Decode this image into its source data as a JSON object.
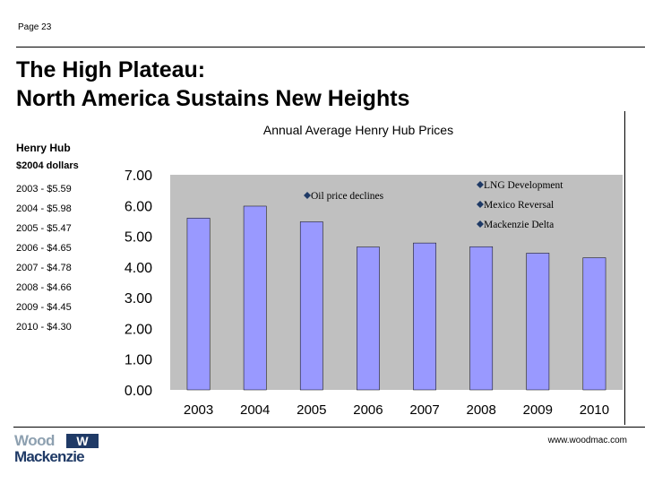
{
  "page": {
    "number_label": "Page 23",
    "website": "www.woodmac.com"
  },
  "title": {
    "line1": "The High Plateau:",
    "line2": "North America Sustains New Heights"
  },
  "sidebar": {
    "heading": "Henry Hub",
    "unit": "$2004 dollars",
    "items": [
      "2003 - $5.59",
      "2004 - $5.98",
      "2005 - $5.47",
      "2006 - $4.65",
      "2007 - $4.78",
      "2008 - $4.66",
      "2009 - $4.45",
      "2010 - $4.30"
    ]
  },
  "logo": {
    "line1": "Wood",
    "line2": "Mackenzie",
    "mark": "W"
  },
  "chart_data": {
    "type": "bar",
    "title": "Annual Average Henry Hub Prices",
    "categories": [
      "2003",
      "2004",
      "2005",
      "2006",
      "2007",
      "2008",
      "2009",
      "2010"
    ],
    "values": [
      5.59,
      5.98,
      5.47,
      4.65,
      4.78,
      4.66,
      4.45,
      4.3
    ],
    "ylim": [
      0,
      7
    ],
    "yticks": [
      "0.00",
      "1.00",
      "2.00",
      "3.00",
      "4.00",
      "5.00",
      "6.00",
      "7.00"
    ],
    "grid": false,
    "bar_color": "#9999ff",
    "plot_background": "#c0c0c0",
    "annotations": [
      {
        "text": "Oil price declines"
      },
      {
        "text": "LNG Development"
      },
      {
        "text": "Mexico Reversal"
      },
      {
        "text": "Mackenzie Delta"
      }
    ]
  }
}
